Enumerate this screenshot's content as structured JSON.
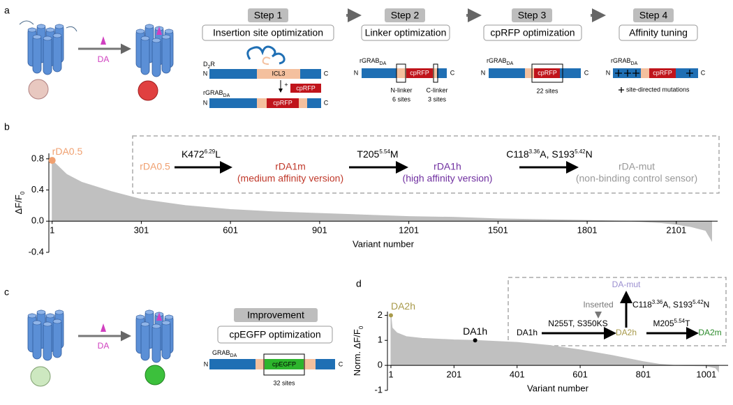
{
  "panels": [
    "a",
    "b",
    "c",
    "d"
  ],
  "panel_a": {
    "ligand": "DA",
    "steps": [
      {
        "step": "Step 1",
        "title": "Insertion site optimization"
      },
      {
        "step": "Step 2",
        "title": "Linker optimization"
      },
      {
        "step": "Step 3",
        "title": "cpRFP optimization"
      },
      {
        "step": "Step 4",
        "title": "Affinity tuning"
      }
    ],
    "step1": {
      "d2r": "D",
      "d2r_sub": "2",
      "d2r_tail": "R",
      "icl3": "ICL3",
      "plus": "+",
      "cprfp_insert": "cpRFP",
      "grab": "rGRAB",
      "grab_sub": "DA",
      "n1": "N",
      "c1": "C",
      "n2": "N",
      "c2": "C",
      "cprfp": "cpRFP"
    },
    "step2": {
      "grab": "rGRAB",
      "grab_sub": "DA",
      "n": "N",
      "c": "C",
      "cprfp": "cpRFP",
      "nlinker": "N-linker",
      "nsites": "6 sites",
      "clinker": "C-linker",
      "csites": "3 sites"
    },
    "step3": {
      "grab": "rGRAB",
      "grab_sub": "DA",
      "n": "N",
      "c": "C",
      "cprfp": "cpRFP",
      "sites": "22 sites"
    },
    "step4": {
      "grab": "rGRAB",
      "grab_sub": "DA",
      "n": "N",
      "c": "C",
      "cprfp": "cpRFP",
      "mutations": "site-directed mutations"
    }
  },
  "panel_b_inset": {
    "s0": "rDA0.5",
    "m1": {
      "base": "K472",
      "sup": "6.29",
      "tail": "L"
    },
    "s1": "rDA1m",
    "s1_note": "(medium affinity version)",
    "m2": {
      "base": "T205",
      "sup": "5.54",
      "tail": "M"
    },
    "s2": "rDA1h",
    "s2_note": "(high affinity version)",
    "m3": {
      "base": "C118",
      "sup": "3.36",
      "mid": "A, S193",
      "sup2": "5.42",
      "tail": "N"
    },
    "s3": "rDA-mut",
    "s3_note": "(non-binding control sensor)"
  },
  "panel_c": {
    "ligand": "DA",
    "step": "Improvement",
    "title": "cpEGFP optimization",
    "grab": "GRAB",
    "grab_sub": "DA",
    "n": "N",
    "c": "C",
    "cpegfp": "cpEGFP",
    "sites": "32 sites"
  },
  "panel_d_inset": {
    "mut": "DA-mut",
    "inserted": "Inserted",
    "m_up": {
      "base": "C118",
      "sup": "3.36",
      "mid": "A, S193",
      "sup2": "5.42",
      "tail": "N"
    },
    "s0": "DA1h",
    "m1": "N255T, S350KS",
    "s1": "DA2h",
    "m2": {
      "base": "M205",
      "sup": "5.54",
      "tail": "T"
    },
    "s2": "DA2m"
  },
  "chart_data": [
    {
      "type": "area",
      "y_label": "ΔF/F",
      "y_label_sub": "0",
      "x_label": "Variant number",
      "x": [
        1,
        50,
        100,
        200,
        301,
        450,
        601,
        750,
        901,
        1050,
        1201,
        1350,
        1501,
        1650,
        1801,
        1950,
        2050,
        2101,
        2150,
        2200,
        2220
      ],
      "values": [
        0.78,
        0.6,
        0.5,
        0.38,
        0.28,
        0.2,
        0.15,
        0.12,
        0.1,
        0.08,
        0.06,
        0.05,
        0.03,
        0.02,
        0.01,
        0.0,
        -0.02,
        -0.04,
        -0.07,
        -0.12,
        -0.25
      ],
      "color": "#c0c0c0",
      "xlim": [
        -10,
        2240
      ],
      "ylim": [
        -0.4,
        0.87
      ],
      "xticks": [
        1,
        301,
        601,
        901,
        1201,
        1501,
        1801,
        2101
      ],
      "yticks": [
        -0.4,
        {
          "value": 0,
          "label": "0.0"
        },
        0.4,
        0.8
      ],
      "highlights": [
        {
          "name": "rDA0.5",
          "x": 1,
          "value": 0.78,
          "color": "#f0a070"
        }
      ]
    },
    {
      "type": "area",
      "y_label": "Norm. ΔF/F",
      "y_label_sub": "0",
      "x_label": "Variant number",
      "x": [
        1,
        5,
        20,
        50,
        100,
        201,
        268,
        301,
        401,
        501,
        601,
        701,
        801,
        851,
        901,
        1001,
        1030,
        1040
      ],
      "values": [
        2.0,
        1.5,
        1.3,
        1.15,
        1.08,
        1.02,
        1.0,
        0.98,
        0.92,
        0.8,
        0.62,
        0.4,
        0.15,
        0.05,
        0.0,
        -0.02,
        -0.1,
        -0.25
      ],
      "color": "#c0c0c0",
      "xlim": [
        -10,
        1070
      ],
      "ylim": [
        -1,
        2.15
      ],
      "xticks": [
        1,
        201,
        401,
        601,
        801,
        1001
      ],
      "yticks": [
        -1,
        0,
        1,
        2
      ],
      "highlights": [
        {
          "name": "DA2h",
          "x": 1,
          "value": 2.0,
          "color": "#a89a4a"
        },
        {
          "name": "DA1h",
          "x": 268,
          "value": 1.0,
          "color": "#000000"
        }
      ]
    }
  ]
}
